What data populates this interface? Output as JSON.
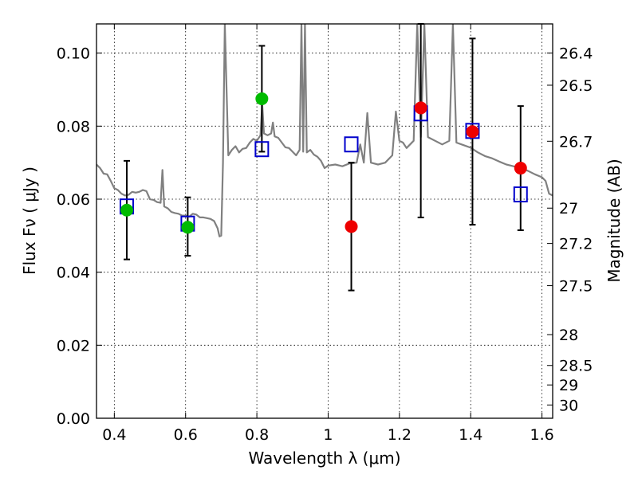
{
  "chart_data": {
    "type": "scatter",
    "xlabel": "Wavelength  λ (μm)",
    "ylabel": "Flux  Fν  ( μJy )",
    "ylabel_right": "Magnitude (AB)",
    "xlim": [
      0.35,
      1.63
    ],
    "ylim": [
      0.0,
      0.108
    ],
    "x_ticks": [
      0.4,
      0.6,
      0.8,
      1.0,
      1.2,
      1.4,
      1.6
    ],
    "x_tick_labels": [
      "0.4",
      "0.6",
      "0.8",
      "1",
      "1.2",
      "1.4",
      "1.6"
    ],
    "y_ticks": [
      0.0,
      0.02,
      0.04,
      0.06,
      0.08,
      0.1
    ],
    "y_tick_labels": [
      "0.00",
      "0.02",
      "0.04",
      "0.06",
      "0.08",
      "0.10"
    ],
    "mag_ticks": [
      26.4,
      26.5,
      26.7,
      27,
      27.2,
      27.5,
      28,
      28.5,
      29,
      30
    ],
    "mag_tick_labels": [
      "26.4",
      "26.5",
      "26.7",
      "27",
      "27.2",
      "27.5",
      "28",
      "28.5",
      "29",
      "30"
    ],
    "grid": true,
    "series": [
      {
        "name": "template spectrum",
        "kind": "line",
        "color": "#808080",
        "x": [
          0.35,
          0.36,
          0.37,
          0.38,
          0.39,
          0.4,
          0.41,
          0.42,
          0.43,
          0.44,
          0.45,
          0.46,
          0.47,
          0.48,
          0.49,
          0.5,
          0.51,
          0.52,
          0.53,
          0.535,
          0.54,
          0.55,
          0.56,
          0.57,
          0.58,
          0.59,
          0.6,
          0.61,
          0.62,
          0.63,
          0.64,
          0.65,
          0.66,
          0.67,
          0.68,
          0.69,
          0.695,
          0.7,
          0.705,
          0.71,
          0.72,
          0.73,
          0.74,
          0.75,
          0.76,
          0.77,
          0.78,
          0.79,
          0.8,
          0.81,
          0.815,
          0.82,
          0.83,
          0.84,
          0.845,
          0.85,
          0.86,
          0.87,
          0.88,
          0.89,
          0.9,
          0.91,
          0.92,
          0.925,
          0.93,
          0.935,
          0.94,
          0.95,
          0.96,
          0.97,
          0.98,
          0.99,
          1.0,
          1.02,
          1.04,
          1.06,
          1.08,
          1.09,
          1.1,
          1.11,
          1.12,
          1.14,
          1.16,
          1.18,
          1.19,
          1.2,
          1.21,
          1.22,
          1.24,
          1.25,
          1.26,
          1.27,
          1.28,
          1.3,
          1.32,
          1.34,
          1.35,
          1.36,
          1.38,
          1.4,
          1.42,
          1.44,
          1.46,
          1.48,
          1.5,
          1.52,
          1.54,
          1.56,
          1.58,
          1.6,
          1.61,
          1.62,
          1.63
        ],
        "y": [
          0.0695,
          0.0685,
          0.067,
          0.0668,
          0.065,
          0.063,
          0.0625,
          0.0615,
          0.061,
          0.0612,
          0.062,
          0.0618,
          0.062,
          0.0625,
          0.0622,
          0.06,
          0.0598,
          0.0592,
          0.059,
          0.068,
          0.058,
          0.0575,
          0.0565,
          0.0562,
          0.056,
          0.0555,
          0.0555,
          0.0552,
          0.056,
          0.0558,
          0.055,
          0.055,
          0.0548,
          0.0546,
          0.054,
          0.052,
          0.0498,
          0.05,
          0.07,
          0.108,
          0.072,
          0.0735,
          0.0745,
          0.0728,
          0.0738,
          0.074,
          0.0755,
          0.0765,
          0.076,
          0.0775,
          0.086,
          0.078,
          0.0775,
          0.078,
          0.081,
          0.0772,
          0.0768,
          0.0755,
          0.0742,
          0.074,
          0.073,
          0.072,
          0.0735,
          0.108,
          0.073,
          0.108,
          0.0728,
          0.0735,
          0.0722,
          0.0716,
          0.0705,
          0.0685,
          0.0692,
          0.0695,
          0.069,
          0.0698,
          0.07,
          0.075,
          0.07,
          0.0836,
          0.07,
          0.0695,
          0.07,
          0.072,
          0.084,
          0.076,
          0.0755,
          0.074,
          0.076,
          0.108,
          0.077,
          0.108,
          0.077,
          0.076,
          0.075,
          0.076,
          0.108,
          0.0755,
          0.0748,
          0.0741,
          0.0728,
          0.0718,
          0.0712,
          0.0703,
          0.0695,
          0.069,
          0.0685,
          0.0678,
          0.0668,
          0.066,
          0.065,
          0.0615,
          0.061
        ]
      },
      {
        "name": "model photometry",
        "kind": "open-square",
        "color": "#0000cc",
        "x": [
          0.435,
          0.606,
          0.814,
          1.065,
          1.26,
          1.405,
          1.54
        ],
        "y": [
          0.058,
          0.0533,
          0.0737,
          0.075,
          0.0835,
          0.0787,
          0.0613
        ]
      },
      {
        "name": "observed optical",
        "kind": "filled-circle",
        "color": "#00bb00",
        "x": [
          0.435,
          0.606,
          0.814
        ],
        "y": [
          0.057,
          0.0523,
          0.0875
        ]
      },
      {
        "name": "observed near-IR",
        "kind": "filled-circle",
        "color": "#ee0000",
        "x": [
          1.065,
          1.26,
          1.405,
          1.54
        ],
        "y": [
          0.0525,
          0.085,
          0.0785,
          0.0685
        ]
      }
    ],
    "error_bars": [
      {
        "x": 0.435,
        "low": 0.0435,
        "high": 0.0705
      },
      {
        "x": 0.606,
        "low": 0.0445,
        "high": 0.0605
      },
      {
        "x": 0.814,
        "low": 0.073,
        "high": 0.102
      },
      {
        "x": 1.065,
        "low": 0.035,
        "high": 0.07
      },
      {
        "x": 1.26,
        "low": 0.055,
        "high": 0.108
      },
      {
        "x": 1.405,
        "low": 0.053,
        "high": 0.104
      },
      {
        "x": 1.54,
        "low": 0.0515,
        "high": 0.0855
      }
    ]
  }
}
